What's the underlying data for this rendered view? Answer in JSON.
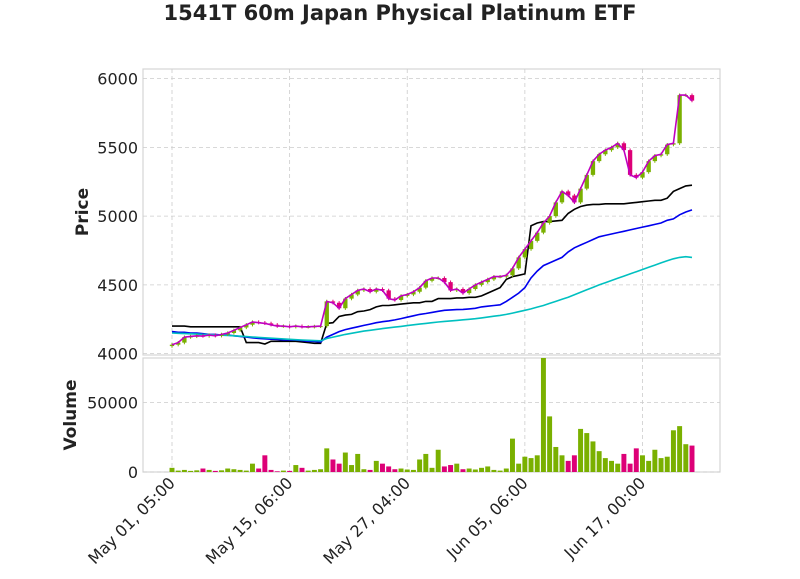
{
  "chart_data": {
    "type": "candlestick",
    "title": "1541T 60m Japan Physical Platinum ETF",
    "price_panel": {
      "ylabel": "Price",
      "ylim": [
        3990,
        6070
      ],
      "yticks": [
        4000,
        4500,
        5000,
        5500,
        6000
      ],
      "grid": true,
      "candle_colors": {
        "up": "#7ab000",
        "down": "#dd0077"
      },
      "close_series": [
        {
          "name": "close",
          "color": "#c000c0",
          "values": [
            4065,
            4080,
            4120,
            4125,
            4130,
            4128,
            4135,
            4130,
            4140,
            4150,
            4170,
            4190,
            4210,
            4230,
            4225,
            4220,
            4210,
            4200,
            4200,
            4195,
            4200,
            4195,
            4195,
            4198,
            4200,
            4380,
            4370,
            4330,
            4400,
            4430,
            4460,
            4470,
            4450,
            4470,
            4460,
            4400,
            4390,
            4420,
            4430,
            4450,
            4480,
            4530,
            4550,
            4550,
            4520,
            4460,
            4470,
            4440,
            4470,
            4500,
            4520,
            4540,
            4560,
            4560,
            4570,
            4620,
            4700,
            4760,
            4820,
            4880,
            4950,
            5000,
            5100,
            5180,
            5150,
            5100,
            5200,
            5300,
            5400,
            5450,
            5480,
            5500,
            5530,
            5480,
            5300,
            5280,
            5320,
            5400,
            5440,
            5450,
            5520,
            5530,
            5880,
            5880,
            5840
          ]
        }
      ],
      "moving_averages": [
        {
          "name": "ma_black",
          "color": "#000000",
          "values": [
            4200,
            4200,
            4200,
            4195,
            4195,
            4195,
            4195,
            4195,
            4195,
            4195,
            4195,
            4195,
            4080,
            4080,
            4080,
            4070,
            4090,
            4090,
            4090,
            4090,
            4090,
            4085,
            4080,
            4075,
            4075,
            4220,
            4225,
            4270,
            4280,
            4285,
            4305,
            4310,
            4320,
            4340,
            4350,
            4350,
            4355,
            4360,
            4365,
            4370,
            4370,
            4380,
            4380,
            4400,
            4400,
            4400,
            4405,
            4405,
            4410,
            4410,
            4420,
            4440,
            4460,
            4480,
            4540,
            4560,
            4570,
            4580,
            4930,
            4950,
            4960,
            4960,
            4965,
            4970,
            5020,
            5050,
            5070,
            5080,
            5085,
            5085,
            5090,
            5090,
            5090,
            5090,
            5095,
            5100,
            5105,
            5110,
            5115,
            5115,
            5130,
            5180,
            5200,
            5220,
            5225
          ]
        },
        {
          "name": "ma_blue",
          "color": "#0000ee",
          "values": [
            4160,
            4155,
            4155,
            4150,
            4150,
            4145,
            4140,
            4140,
            4135,
            4135,
            4130,
            4125,
            4120,
            4115,
            4110,
            4108,
            4105,
            4103,
            4100,
            4100,
            4098,
            4095,
            4090,
            4088,
            4085,
            4120,
            4140,
            4160,
            4175,
            4185,
            4195,
            4205,
            4215,
            4225,
            4232,
            4238,
            4245,
            4255,
            4265,
            4275,
            4285,
            4292,
            4300,
            4308,
            4315,
            4318,
            4320,
            4322,
            4325,
            4330,
            4340,
            4345,
            4350,
            4355,
            4380,
            4410,
            4440,
            4480,
            4550,
            4600,
            4640,
            4660,
            4680,
            4700,
            4740,
            4770,
            4790,
            4810,
            4830,
            4850,
            4860,
            4870,
            4880,
            4890,
            4900,
            4910,
            4920,
            4930,
            4940,
            4950,
            4970,
            4980,
            5010,
            5030,
            5045
          ]
        },
        {
          "name": "ma_cyan",
          "color": "#00c0c0",
          "values": [
            4150,
            4148,
            4146,
            4144,
            4142,
            4140,
            4138,
            4136,
            4134,
            4132,
            4130,
            4127,
            4124,
            4121,
            4118,
            4115,
            4112,
            4110,
            4107,
            4104,
            4101,
            4099,
            4097,
            4095,
            4093,
            4110,
            4120,
            4130,
            4140,
            4148,
            4156,
            4164,
            4170,
            4176,
            4182,
            4188,
            4193,
            4198,
            4204,
            4210,
            4215,
            4220,
            4225,
            4230,
            4234,
            4238,
            4242,
            4246,
            4250,
            4254,
            4260,
            4266,
            4272,
            4278,
            4285,
            4295,
            4305,
            4315,
            4325,
            4338,
            4350,
            4365,
            4380,
            4395,
            4410,
            4428,
            4446,
            4464,
            4482,
            4500,
            4516,
            4532,
            4548,
            4564,
            4580,
            4596,
            4612,
            4628,
            4644,
            4660,
            4675,
            4690,
            4700,
            4705,
            4700
          ]
        }
      ]
    },
    "volume_panel": {
      "ylabel": "Volume",
      "ylim": [
        0,
        82000
      ],
      "yticks": [
        0,
        50000
      ],
      "values": [
        3000,
        1000,
        1500,
        800,
        1200,
        2500,
        1500,
        800,
        1200,
        2500,
        2000,
        1500,
        1000,
        6000,
        2500,
        12000,
        1500,
        500,
        1000,
        800,
        5000,
        3000,
        1000,
        1500,
        2000,
        17000,
        9000,
        6000,
        14000,
        5000,
        13000,
        2000,
        1500,
        8000,
        6000,
        4000,
        2000,
        2500,
        1800,
        1500,
        9000,
        13000,
        3000,
        16000,
        4000,
        5000,
        6000,
        2000,
        2500,
        1800,
        3000,
        4000,
        1500,
        1000,
        2500,
        24000,
        6000,
        11000,
        10000,
        12000,
        83000,
        40000,
        18000,
        12000,
        8000,
        12000,
        31000,
        28000,
        22000,
        15000,
        10000,
        8000,
        6000,
        13000,
        6000,
        17000,
        12000,
        8000,
        16000,
        10000,
        11000,
        30000,
        33000,
        20000,
        19000
      ]
    },
    "xticks": [
      {
        "index": 0,
        "label": "May 01, 05:00"
      },
      {
        "index": 19,
        "label": "May 15, 06:00"
      },
      {
        "index": 38,
        "label": "May 27, 04:00"
      },
      {
        "index": 57,
        "label": "Jun 05, 06:00"
      },
      {
        "index": 76,
        "label": "Jun 17, 00:00"
      }
    ]
  }
}
